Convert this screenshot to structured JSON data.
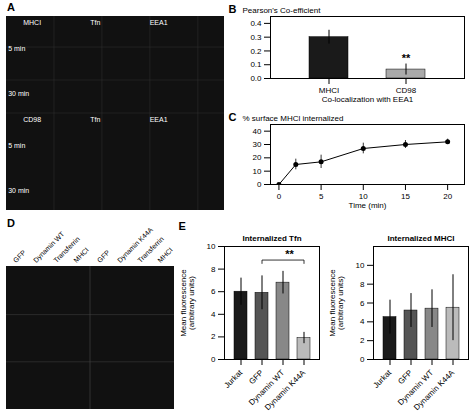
{
  "chart_data": [
    {
      "type": "image",
      "title": "A",
      "annotations": [
        "MHCI",
        "Tfn",
        "EEA1",
        "5 min",
        "30 min",
        "CD98",
        "Tfn",
        "EEA1",
        "5 min",
        "30 min"
      ]
    },
    {
      "type": "bar",
      "title": "B",
      "categories": [
        "MHCI",
        "CD98"
      ],
      "values": [
        0.3,
        0.065
      ],
      "errors": [
        0.05,
        0.04
      ],
      "colors": [
        "#1a1a1a",
        "#aaaaaa"
      ],
      "xlabel": "Co-localization with EEA1",
      "ylabel": "Pearson's Co-efficient",
      "ylim": [
        0,
        0.45
      ],
      "yticks": [
        {
          "value": 0,
          "label": "0.0"
        },
        0.1,
        0.2,
        0.3,
        0.4
      ],
      "annotations": [
        {
          "text": "**",
          "x": "CD98",
          "y": 0.12
        }
      ]
    },
    {
      "type": "line",
      "title": "C",
      "x": [
        0,
        2,
        5,
        10,
        15,
        20
      ],
      "values": [
        0,
        15,
        17,
        27,
        30,
        32
      ],
      "errors": [
        0,
        4,
        5,
        4,
        3,
        2
      ],
      "color": "black",
      "marker": "circle",
      "xlabel": "Time (min)",
      "ylabel": "% surface MHCl internalized",
      "xlim": [
        -1,
        22
      ],
      "ylim": [
        0,
        45
      ],
      "xticks": [
        0,
        5,
        10,
        15,
        20
      ],
      "yticks": [
        0,
        10,
        20,
        30,
        40
      ]
    },
    {
      "type": "image",
      "title": "D",
      "annotations": [
        "GFP",
        "Dynamin WT",
        "Transferrin",
        "MHCI",
        "GFP",
        "Dynamin K44A",
        "Transferrin",
        "MHCI"
      ]
    },
    {
      "type": "bar",
      "title": "Internalized Tfn",
      "categories": [
        "Jurkat",
        "GFP",
        "Dynamin WT",
        "Dynamin K44A"
      ],
      "values": [
        6.0,
        5.9,
        6.8,
        1.9
      ],
      "errors": [
        1.2,
        1.5,
        1.0,
        0.5
      ],
      "colors": [
        "#1a1a1a",
        "#555555",
        "#888888",
        "#bbbbbb"
      ],
      "ylabel": "Mean fluorescence\n(arbitrary units)",
      "ylim": [
        0,
        10
      ],
      "yticks": [
        0,
        2,
        4,
        6,
        8,
        10
      ],
      "annotations": [
        "E",
        {
          "text": "**",
          "x1": "GFP",
          "x2": "Dynamin K44A",
          "y": 8.5
        }
      ]
    },
    {
      "type": "bar",
      "title": "Internalized MHCI",
      "categories": [
        "Jurkat",
        "GFP",
        "Dynamin WT",
        "Dynamin K44A"
      ],
      "values": [
        4.5,
        5.2,
        5.4,
        5.5
      ],
      "errors": [
        1.8,
        1.8,
        2.0,
        3.5
      ],
      "colors": [
        "#1a1a1a",
        "#555555",
        "#888888",
        "#bbbbbb"
      ],
      "ylabel": "Mean fluorescence\n(arbitrary units)",
      "ylim": [
        0,
        12
      ],
      "yticks": [
        0,
        2,
        4,
        6,
        8,
        10
      ]
    }
  ]
}
